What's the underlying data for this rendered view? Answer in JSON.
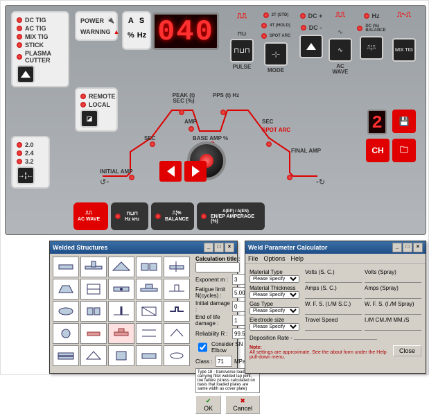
{
  "panel": {
    "modes": [
      "DC TIG",
      "AC TIG",
      "MIX TIG",
      "STICK",
      "PLASMA CUTTER"
    ],
    "power": [
      "POWER",
      "WARNING"
    ],
    "thickness": [
      "2.0",
      "2.4",
      "3.2"
    ],
    "remote": [
      "REMOTE",
      "LOCAL"
    ],
    "displays": {
      "main": "040",
      "mem": "2"
    },
    "units_grid": [
      "A",
      "S",
      "%",
      "Hz"
    ],
    "top_cols": [
      {
        "t": "PULSE"
      },
      {
        "t": "MODE",
        "sub": [
          "2T (STD)",
          "4T (HOLD)",
          "SPOT ARC"
        ]
      },
      {
        "t": "DC +",
        "b": "DC -"
      },
      {
        "t": "AC WAVE"
      },
      {
        "t": "Hz",
        "b": "DC (%) BALANCE"
      },
      {
        "t": "MIX TIG"
      }
    ],
    "curve": {
      "initial": "INITIAL AMP",
      "sec1": "SEC",
      "peak": "PEAK (t) SEC (%)",
      "amp": "AMP",
      "pps": "PPS (t) Hz",
      "base": "BASE AMP %",
      "sec2": "SEC",
      "spot": "SPOT ARC",
      "final": "FINAL AMP"
    },
    "ch": "CH",
    "bottom": [
      {
        "t": "AC WAVE",
        "c": "red"
      },
      {
        "t": "Hz",
        "s": "kHz",
        "c": "dark"
      },
      {
        "t": "BALANCE",
        "s": "%",
        "c": "dark"
      },
      {
        "t": "EN/EP AMPERAGE (%)",
        "s": "A(EP) / A(EN)",
        "c": "dark"
      }
    ]
  },
  "win1": {
    "title": "Welded Structures",
    "calc_title": "Calculation title :",
    "fields": [
      {
        "l": "Exponent m :",
        "v": "3"
      },
      {
        "l": "Fatigue limit N(cycles) :",
        "v": "5.00E+06"
      },
      {
        "l": "Initial damage :",
        "v": "0"
      },
      {
        "l": "End of life damage :",
        "v": "1"
      },
      {
        "l": "Reliability R :",
        "v": "99.5%"
      }
    ],
    "check": "Consider SN Curve Elbow",
    "class_label": "Class :",
    "class_val": "71",
    "class_unit": "MPa",
    "desc": "Type 18 - transverse load-carrying fillet welded lap joint, toe failure (stress calculated on basis that loaded plates are same width as cover plate)",
    "ok": "OK",
    "cancel": "Cancel"
  },
  "win2": {
    "title": "Weld Parameter Calculator",
    "menu": [
      "File",
      "Options",
      "Help"
    ],
    "rows": [
      {
        "l": "Material Type",
        "a": "Volts (S. C.)",
        "b": "Volts (Spray)"
      },
      {
        "l": "Material Thickness",
        "a": "Amps (S. C.)",
        "b": "Amps (Spray)"
      },
      {
        "l": "Gas Type",
        "a": "W. F. S. (I./M S.C.)",
        "b": "W. F. S. (I./M Spray)"
      },
      {
        "l": "Electrode size",
        "a": "Travel Speed",
        "b": "I./M  CM./M  MM./S"
      }
    ],
    "please": "Please Specify",
    "dep": "Deposition Rate -",
    "note_hdr": "Note:",
    "note": "All settings are approximate. See the about form under the Help pull-down menu.",
    "close": "Close"
  }
}
